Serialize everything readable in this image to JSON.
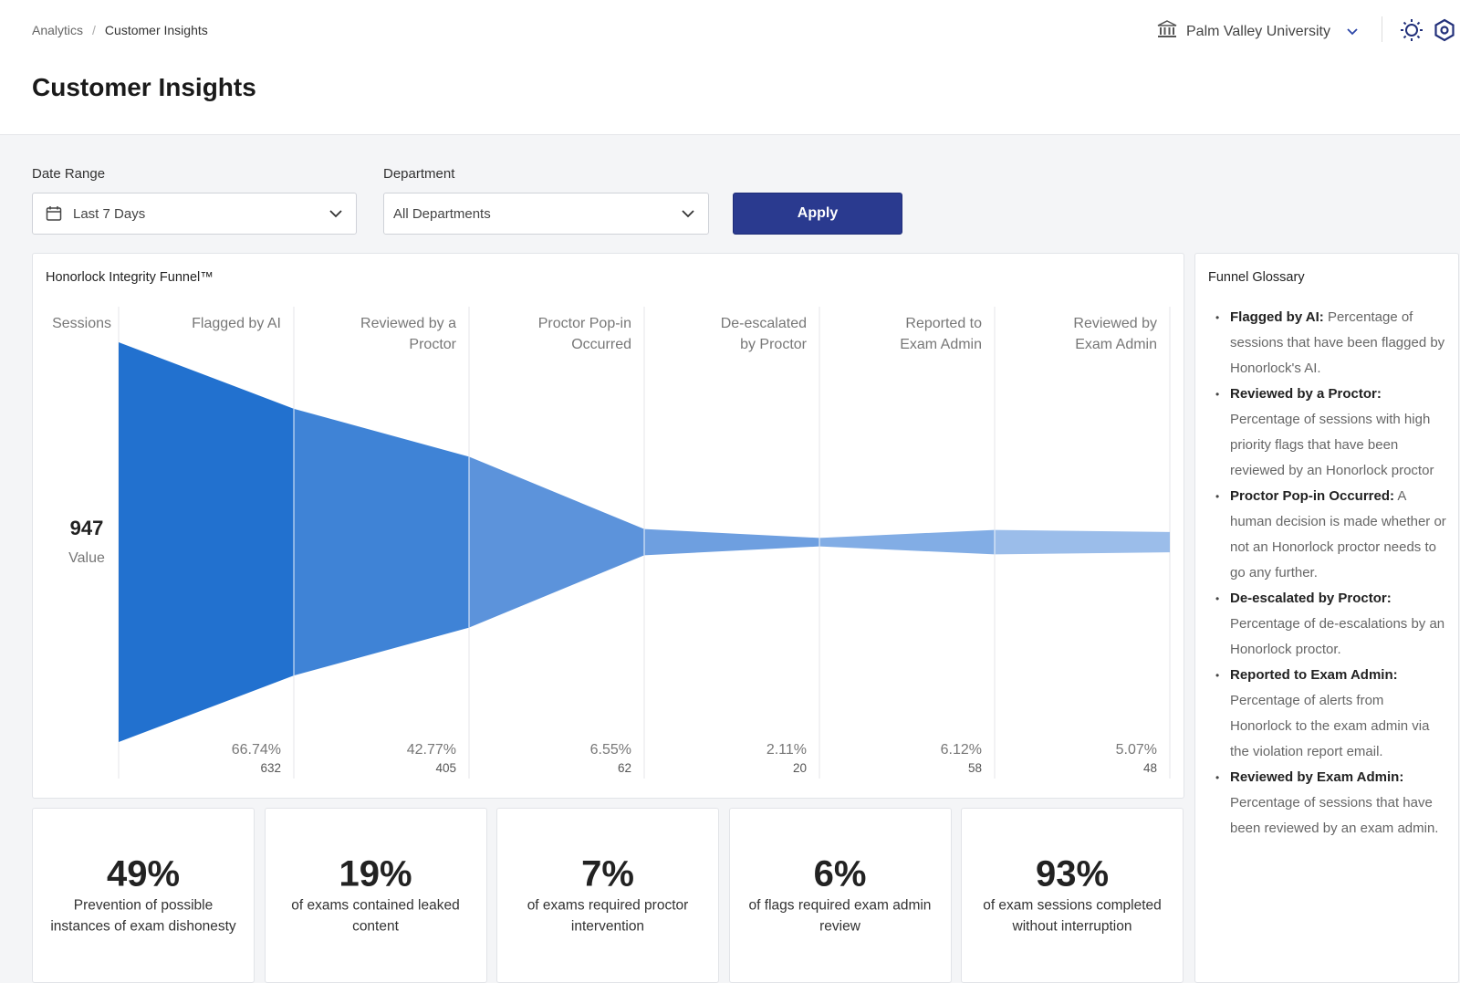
{
  "breadcrumb": {
    "parent": "Analytics",
    "separator": "/",
    "current": "Customer Insights"
  },
  "page_title": "Customer Insights",
  "org": {
    "name": "Palm Valley University",
    "icon": "university-icon"
  },
  "header_icons": [
    "sun-icon",
    "gear-icon"
  ],
  "filters": {
    "date_range_label": "Date Range",
    "date_range_value": "Last 7 Days",
    "department_label": "Department",
    "department_value": "All Departments",
    "apply_label": "Apply"
  },
  "funnel": {
    "title": "Honorlock Integrity Funnel™",
    "sessions_label": "Sessions",
    "total_value": "947",
    "total_caption": "Value"
  },
  "chart_data": {
    "type": "funnel",
    "title": "Honorlock Integrity Funnel™",
    "total": 947,
    "stages": [
      {
        "label": "Flagged by AI",
        "percent": "66.74%",
        "count": 632
      },
      {
        "label": "Reviewed by a Proctor",
        "percent": "42.77%",
        "count": 405
      },
      {
        "label": "Proctor Pop-in Occurred",
        "percent": "6.55%",
        "count": 62
      },
      {
        "label": "De-escalated by Proctor",
        "percent": "2.11%",
        "count": 20
      },
      {
        "label": "Reported to Exam Admin",
        "percent": "6.12%",
        "count": 58
      },
      {
        "label": "Reviewed by Exam Admin",
        "percent": "5.07%",
        "count": 48
      }
    ],
    "colors": [
      "#2271cf",
      "#3f83d6",
      "#5c93db",
      "#6e9fe0",
      "#82ade5",
      "#9bbdea"
    ]
  },
  "glossary": {
    "title": "Funnel Glossary",
    "items": [
      {
        "term": "Flagged by AI:",
        "definition": " Percentage of sessions that have been flagged by Honorlock's AI."
      },
      {
        "term": "Reviewed by a Proctor:",
        "definition": " Percentage of sessions with high priority flags that have been reviewed by an Honorlock proctor"
      },
      {
        "term": "Proctor Pop-in Occurred:",
        "definition": " A human decision is made whether or not an Honorlock proctor needs to go any further."
      },
      {
        "term": "De-escalated by Proctor:",
        "definition": " Percentage of de-escalations by an Honorlock proctor."
      },
      {
        "term": "Reported to Exam Admin:",
        "definition": " Percentage of alerts from Honorlock to the exam admin via the violation report email."
      },
      {
        "term": "Reviewed by Exam Admin:",
        "definition": " Percentage of sessions that have been reviewed by an exam admin."
      }
    ]
  },
  "stats": [
    {
      "value": "49%",
      "desc": "Prevention of possible instances of exam dishonesty"
    },
    {
      "value": "19%",
      "desc": "of exams contained leaked content"
    },
    {
      "value": "7%",
      "desc": "of exams required proctor intervention"
    },
    {
      "value": "6%",
      "desc": "of flags required exam admin review"
    },
    {
      "value": "93%",
      "desc": "of exam sessions completed without interruption"
    }
  ]
}
